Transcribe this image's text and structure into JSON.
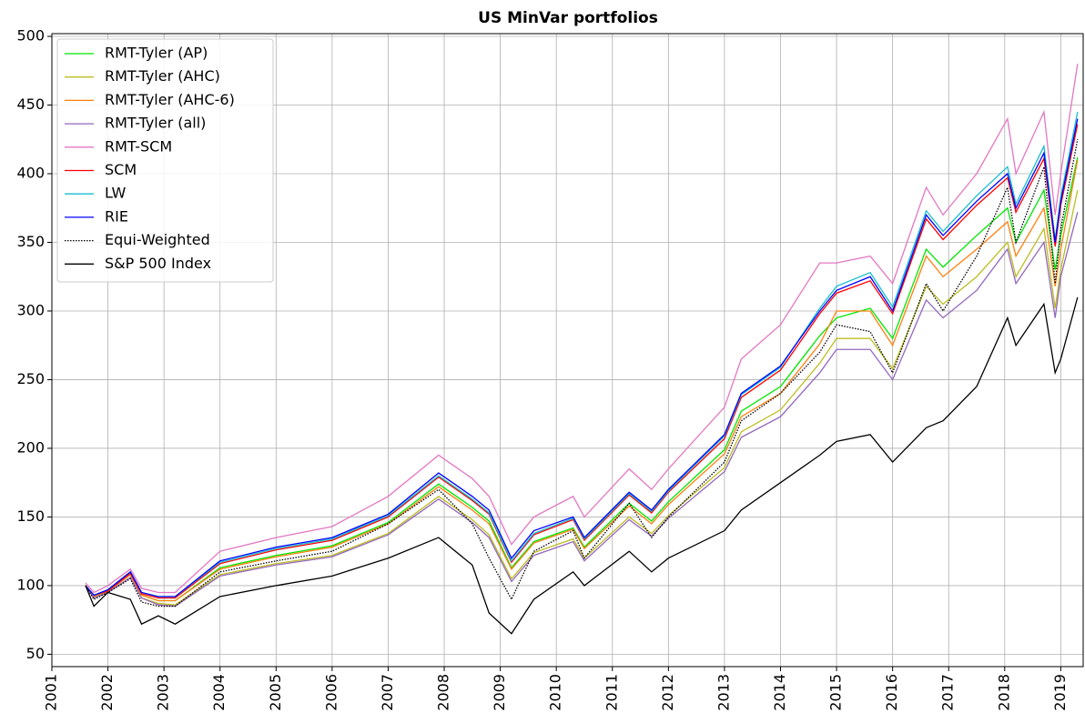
{
  "chart_data": {
    "type": "line",
    "title": "US MinVar portfolios",
    "x": [
      2001.6,
      2001.75,
      2002.0,
      2002.4,
      2002.6,
      2002.9,
      2003.2,
      2004,
      2005,
      2006,
      2007,
      2007.9,
      2008.5,
      2008.8,
      2009.2,
      2009.6,
      2010.3,
      2010.5,
      2011.3,
      2011.7,
      2012,
      2013,
      2013.3,
      2014,
      2014.7,
      2015,
      2015.6,
      2016,
      2016.6,
      2016.9,
      2017.5,
      2018.05,
      2018.2,
      2018.7,
      2018.9,
      2019.0,
      2019.3
    ],
    "series": [
      {
        "name": "RMT-Tyler (AP)",
        "color": "#00e600",
        "values": [
          100,
          92,
          96,
          108,
          93,
          89,
          89,
          113,
          122,
          129,
          146,
          174,
          157,
          147,
          113,
          132,
          142,
          128,
          160,
          147,
          161,
          199,
          227,
          245,
          282,
          295,
          302,
          280,
          345,
          332,
          355,
          375,
          350,
          388,
          330,
          355,
          412
        ]
      },
      {
        "name": "RMT-Tyler (AHC)",
        "color": "#bcbd22",
        "values": [
          100,
          91,
          95,
          106,
          91,
          87,
          86,
          108,
          116,
          122,
          138,
          165,
          148,
          137,
          105,
          124,
          134,
          120,
          150,
          138,
          151,
          186,
          212,
          228,
          262,
          280,
          280,
          258,
          318,
          305,
          325,
          350,
          325,
          360,
          302,
          330,
          388
        ]
      },
      {
        "name": "RMT-Tyler (AHC-6)",
        "color": "#ff7f0e",
        "values": [
          100,
          92,
          96,
          108,
          93,
          89,
          89,
          112,
          121,
          128,
          145,
          172,
          155,
          145,
          112,
          131,
          141,
          127,
          158,
          145,
          159,
          196,
          223,
          240,
          276,
          300,
          300,
          275,
          340,
          325,
          345,
          365,
          340,
          375,
          318,
          345,
          410
        ]
      },
      {
        "name": "RMT-Tyler (all)",
        "color": "#9467bd",
        "values": [
          100,
          91,
          95,
          106,
          91,
          86,
          85,
          107,
          115,
          121,
          137,
          163,
          146,
          135,
          103,
          122,
          132,
          118,
          148,
          136,
          149,
          183,
          208,
          223,
          255,
          272,
          272,
          250,
          308,
          295,
          315,
          345,
          320,
          350,
          295,
          325,
          372
        ]
      },
      {
        "name": "RMT-SCM",
        "color": "#e377c2",
        "values": [
          102,
          95,
          100,
          112,
          98,
          95,
          95,
          125,
          135,
          143,
          165,
          195,
          178,
          165,
          130,
          150,
          165,
          150,
          185,
          170,
          185,
          230,
          265,
          290,
          335,
          335,
          340,
          320,
          390,
          370,
          400,
          440,
          400,
          445,
          370,
          400,
          480
        ]
      },
      {
        "name": "SCM",
        "color": "#ff0000",
        "values": [
          100,
          93,
          96,
          109,
          94,
          91,
          91,
          116,
          126,
          133,
          150,
          179,
          162,
          152,
          117,
          137,
          148,
          133,
          166,
          153,
          168,
          207,
          237,
          257,
          298,
          313,
          322,
          298,
          367,
          352,
          377,
          397,
          372,
          411,
          347,
          377,
          436
        ]
      },
      {
        "name": "LW",
        "color": "#17becf",
        "values": [
          100,
          93,
          97,
          110,
          95,
          92,
          92,
          117,
          127,
          134,
          151,
          180,
          163,
          153,
          118,
          138,
          149,
          134,
          167,
          154,
          169,
          209,
          239,
          259,
          302,
          318,
          328,
          303,
          373,
          358,
          384,
          405,
          378,
          420,
          352,
          383,
          445
        ]
      },
      {
        "name": "RIE",
        "color": "#0000ff",
        "values": [
          100,
          93,
          97,
          110,
          95,
          92,
          92,
          118,
          128,
          135,
          152,
          182,
          165,
          155,
          120,
          140,
          150,
          135,
          168,
          155,
          170,
          210,
          240,
          260,
          300,
          315,
          325,
          300,
          370,
          355,
          380,
          400,
          375,
          415,
          350,
          380,
          440
        ]
      },
      {
        "name": "Equi-Weighted",
        "color": "#000000",
        "linestyle": "dotted",
        "values": [
          100,
          90,
          95,
          105,
          88,
          85,
          85,
          110,
          118,
          125,
          145,
          170,
          145,
          120,
          90,
          125,
          140,
          120,
          160,
          135,
          150,
          190,
          220,
          240,
          270,
          290,
          285,
          255,
          320,
          300,
          340,
          390,
          350,
          405,
          320,
          360,
          425
        ]
      },
      {
        "name": "S&P 500 Index",
        "color": "#000000",
        "values": [
          100,
          85,
          95,
          90,
          72,
          78,
          72,
          92,
          100,
          107,
          120,
          135,
          115,
          80,
          65,
          90,
          110,
          100,
          125,
          110,
          120,
          140,
          155,
          175,
          195,
          205,
          210,
          190,
          215,
          220,
          245,
          295,
          275,
          305,
          255,
          265,
          310
        ]
      }
    ],
    "xlim": [
      2001,
      2019.4
    ],
    "xticks": [
      2001,
      2002,
      2003,
      2004,
      2005,
      2006,
      2007,
      2008,
      2009,
      2010,
      2011,
      2012,
      2013,
      2014,
      2015,
      2016,
      2017,
      2018,
      2019
    ],
    "ylim": [
      41,
      502
    ],
    "yticks": [
      50,
      100,
      150,
      200,
      250,
      300,
      350,
      400,
      450,
      500
    ],
    "grid": true,
    "legend": "upper left"
  }
}
